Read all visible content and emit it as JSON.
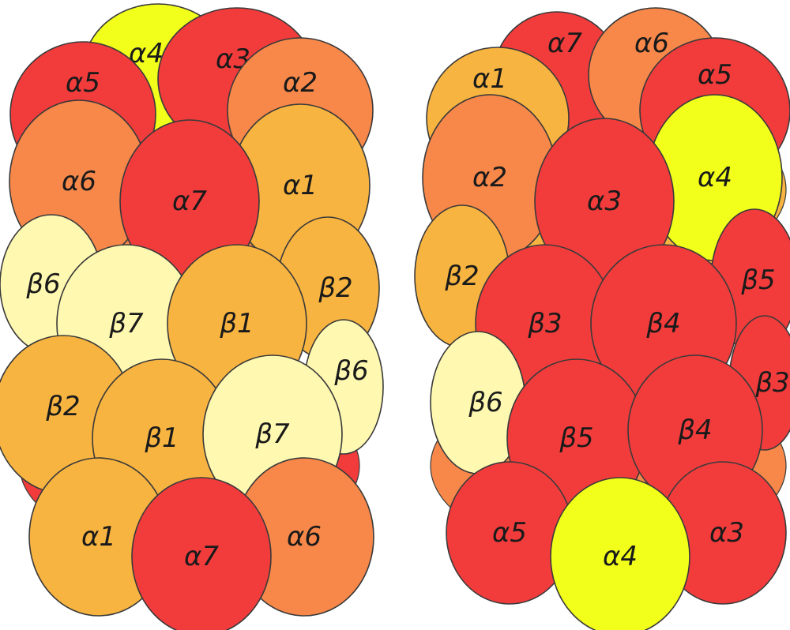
{
  "colors": {
    "red": "#f23c3c",
    "orange": "#f7884a",
    "light_orange": "#f8b440",
    "yellow": "#f2ff1a",
    "pale_yellow": "#fff8b0"
  },
  "left_complex": {
    "subunits": [
      {
        "label": "α4",
        "color": "yellow"
      },
      {
        "label": "α3",
        "color": "red"
      },
      {
        "label": "α5",
        "color": "red"
      },
      {
        "label": "α2",
        "color": "orange"
      },
      {
        "label": "α6",
        "color": "orange"
      },
      {
        "label": "α1",
        "color": "light_orange"
      },
      {
        "label": "α7",
        "color": "red"
      },
      {
        "label": "β6",
        "color": "pale_yellow"
      },
      {
        "label": "β2",
        "color": "light_orange"
      },
      {
        "label": "β7",
        "color": "pale_yellow"
      },
      {
        "label": "β1",
        "color": "light_orange"
      },
      {
        "label": "β6",
        "color": "pale_yellow"
      },
      {
        "label": "β2",
        "color": "light_orange"
      },
      {
        "label": "β1",
        "color": "light_orange"
      },
      {
        "label": "β7",
        "color": "pale_yellow"
      },
      {
        "label": "α1",
        "color": "light_orange"
      },
      {
        "label": "α6",
        "color": "orange"
      },
      {
        "label": "α7",
        "color": "red"
      }
    ]
  },
  "right_complex": {
    "subunits": [
      {
        "label": "α7",
        "color": "red"
      },
      {
        "label": "α6",
        "color": "orange"
      },
      {
        "label": "α1",
        "color": "light_orange"
      },
      {
        "label": "α5",
        "color": "red"
      },
      {
        "label": "α2",
        "color": "orange"
      },
      {
        "label": "α4",
        "color": "yellow"
      },
      {
        "label": "α3",
        "color": "red"
      },
      {
        "label": "β2",
        "color": "light_orange"
      },
      {
        "label": "β5",
        "color": "red"
      },
      {
        "label": "β3",
        "color": "red"
      },
      {
        "label": "β4",
        "color": "red"
      },
      {
        "label": "β6",
        "color": "pale_yellow"
      },
      {
        "label": "β3",
        "color": "red"
      },
      {
        "label": "β5",
        "color": "red"
      },
      {
        "label": "β4",
        "color": "red"
      },
      {
        "label": "α5",
        "color": "red"
      },
      {
        "label": "α3",
        "color": "red"
      },
      {
        "label": "α4",
        "color": "yellow"
      }
    ]
  }
}
